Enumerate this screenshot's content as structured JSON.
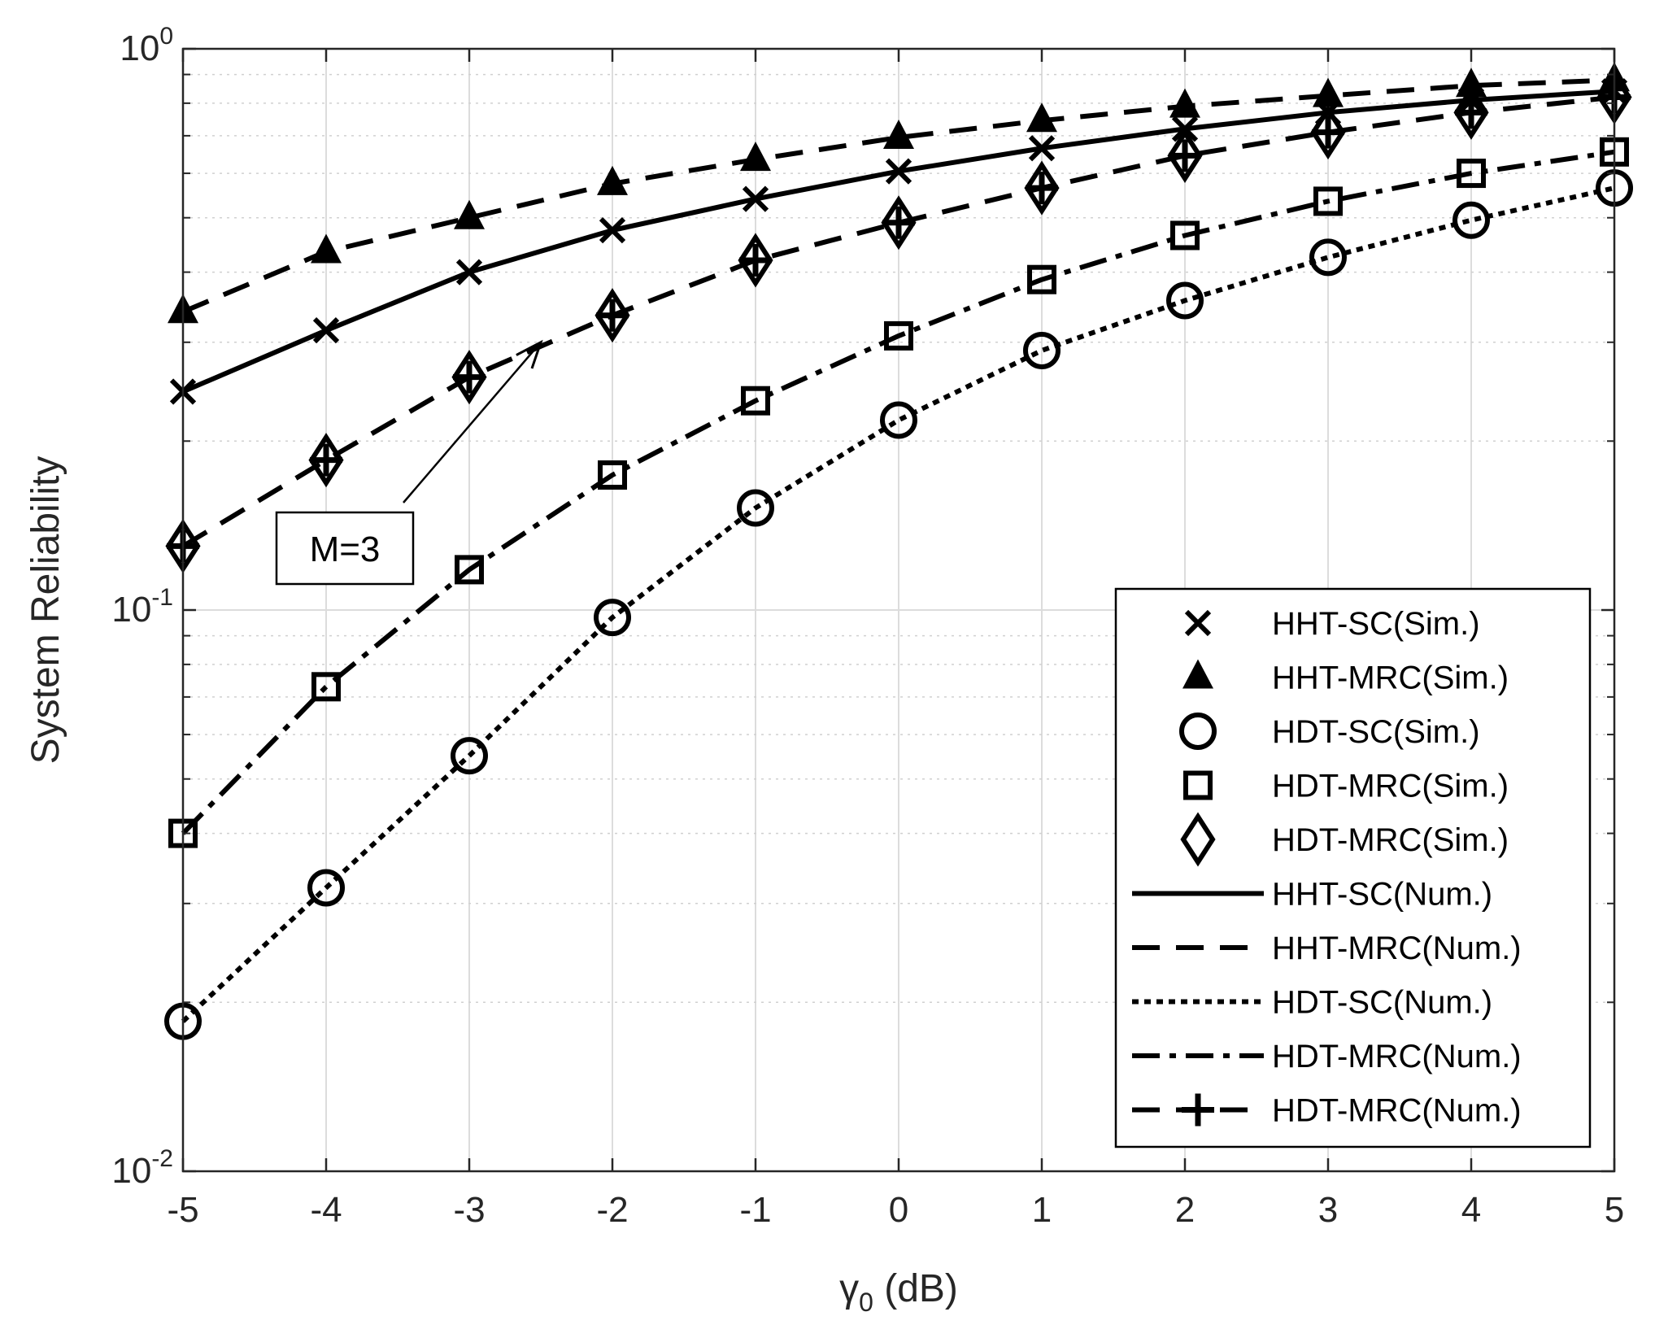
{
  "chart_data": {
    "type": "line",
    "title": "",
    "xlabel": "γ",
    "xlabel_sub": "0",
    "xlabel_suffix": " (dB)",
    "ylabel": "System Reliability",
    "xlim": [
      -5,
      5
    ],
    "ylim": [
      0.01,
      1
    ],
    "yscale": "log",
    "grid": true,
    "x": [
      -5,
      -4,
      -3,
      -2,
      -1,
      0,
      1,
      2,
      3,
      4,
      5
    ],
    "x_tick_labels": [
      "-5",
      "-4",
      "-3",
      "-2",
      "-1",
      "0",
      "1",
      "2",
      "3",
      "4",
      "5"
    ],
    "y_ticks": [
      {
        "value": 1,
        "base": "10",
        "exp": "0"
      },
      {
        "value": 0.1,
        "base": "10",
        "exp": "-1"
      },
      {
        "value": 0.01,
        "base": "10",
        "exp": "-2"
      }
    ],
    "series": [
      {
        "name": "HHT-SC",
        "values": [
          0.245,
          0.315,
          0.4,
          0.475,
          0.54,
          0.605,
          0.665,
          0.72,
          0.77,
          0.81,
          0.84
        ],
        "line": "solid",
        "marker": "x"
      },
      {
        "name": "HHT-MRC",
        "values": [
          0.34,
          0.435,
          0.5,
          0.575,
          0.635,
          0.695,
          0.745,
          0.79,
          0.825,
          0.86,
          0.88
        ],
        "line": "dashed",
        "marker": "triangle"
      },
      {
        "name": "HDT-SC",
        "values": [
          0.0185,
          0.032,
          0.055,
          0.097,
          0.152,
          0.218,
          0.29,
          0.356,
          0.425,
          0.495,
          0.565
        ],
        "line": "dotted",
        "marker": "circle"
      },
      {
        "name": "HDT-MRC",
        "values": [
          0.04,
          0.073,
          0.118,
          0.174,
          0.236,
          0.308,
          0.388,
          0.465,
          0.535,
          0.6,
          0.655
        ],
        "line": "dashdot",
        "marker": "square"
      },
      {
        "name": "HDT-MRC (M=3)",
        "values": [
          0.13,
          0.185,
          0.26,
          0.335,
          0.42,
          0.49,
          0.565,
          0.645,
          0.71,
          0.77,
          0.82
        ],
        "line": "dashed",
        "marker": "diamond"
      }
    ],
    "legend": {
      "position": "bottom-right",
      "entries": [
        {
          "label": "HHT-SC(Sim.)",
          "marker": "x",
          "line": "none"
        },
        {
          "label": "HHT-MRC(Sim.)",
          "marker": "triangle",
          "line": "none"
        },
        {
          "label": "HDT-SC(Sim.)",
          "marker": "circle",
          "line": "none"
        },
        {
          "label": "HDT-MRC(Sim.)",
          "marker": "square",
          "line": "none"
        },
        {
          "label": "HDT-MRC(Sim.)",
          "marker": "diamond",
          "line": "none"
        },
        {
          "label": "HHT-SC(Num.)",
          "marker": "none",
          "line": "solid"
        },
        {
          "label": "HHT-MRC(Num.)",
          "marker": "none",
          "line": "dashed"
        },
        {
          "label": "HDT-SC(Num.)",
          "marker": "none",
          "line": "dotted"
        },
        {
          "label": "HDT-MRC(Num.)",
          "marker": "none",
          "line": "dashdot"
        },
        {
          "label": "HDT-MRC(Num.)",
          "marker": "plus",
          "line": "dashed"
        }
      ]
    },
    "annotations": [
      {
        "text": "M=3",
        "type": "textbox-arrow",
        "from_x": -3.5,
        "to_x": -2.5,
        "to_y": 0.3
      }
    ]
  }
}
